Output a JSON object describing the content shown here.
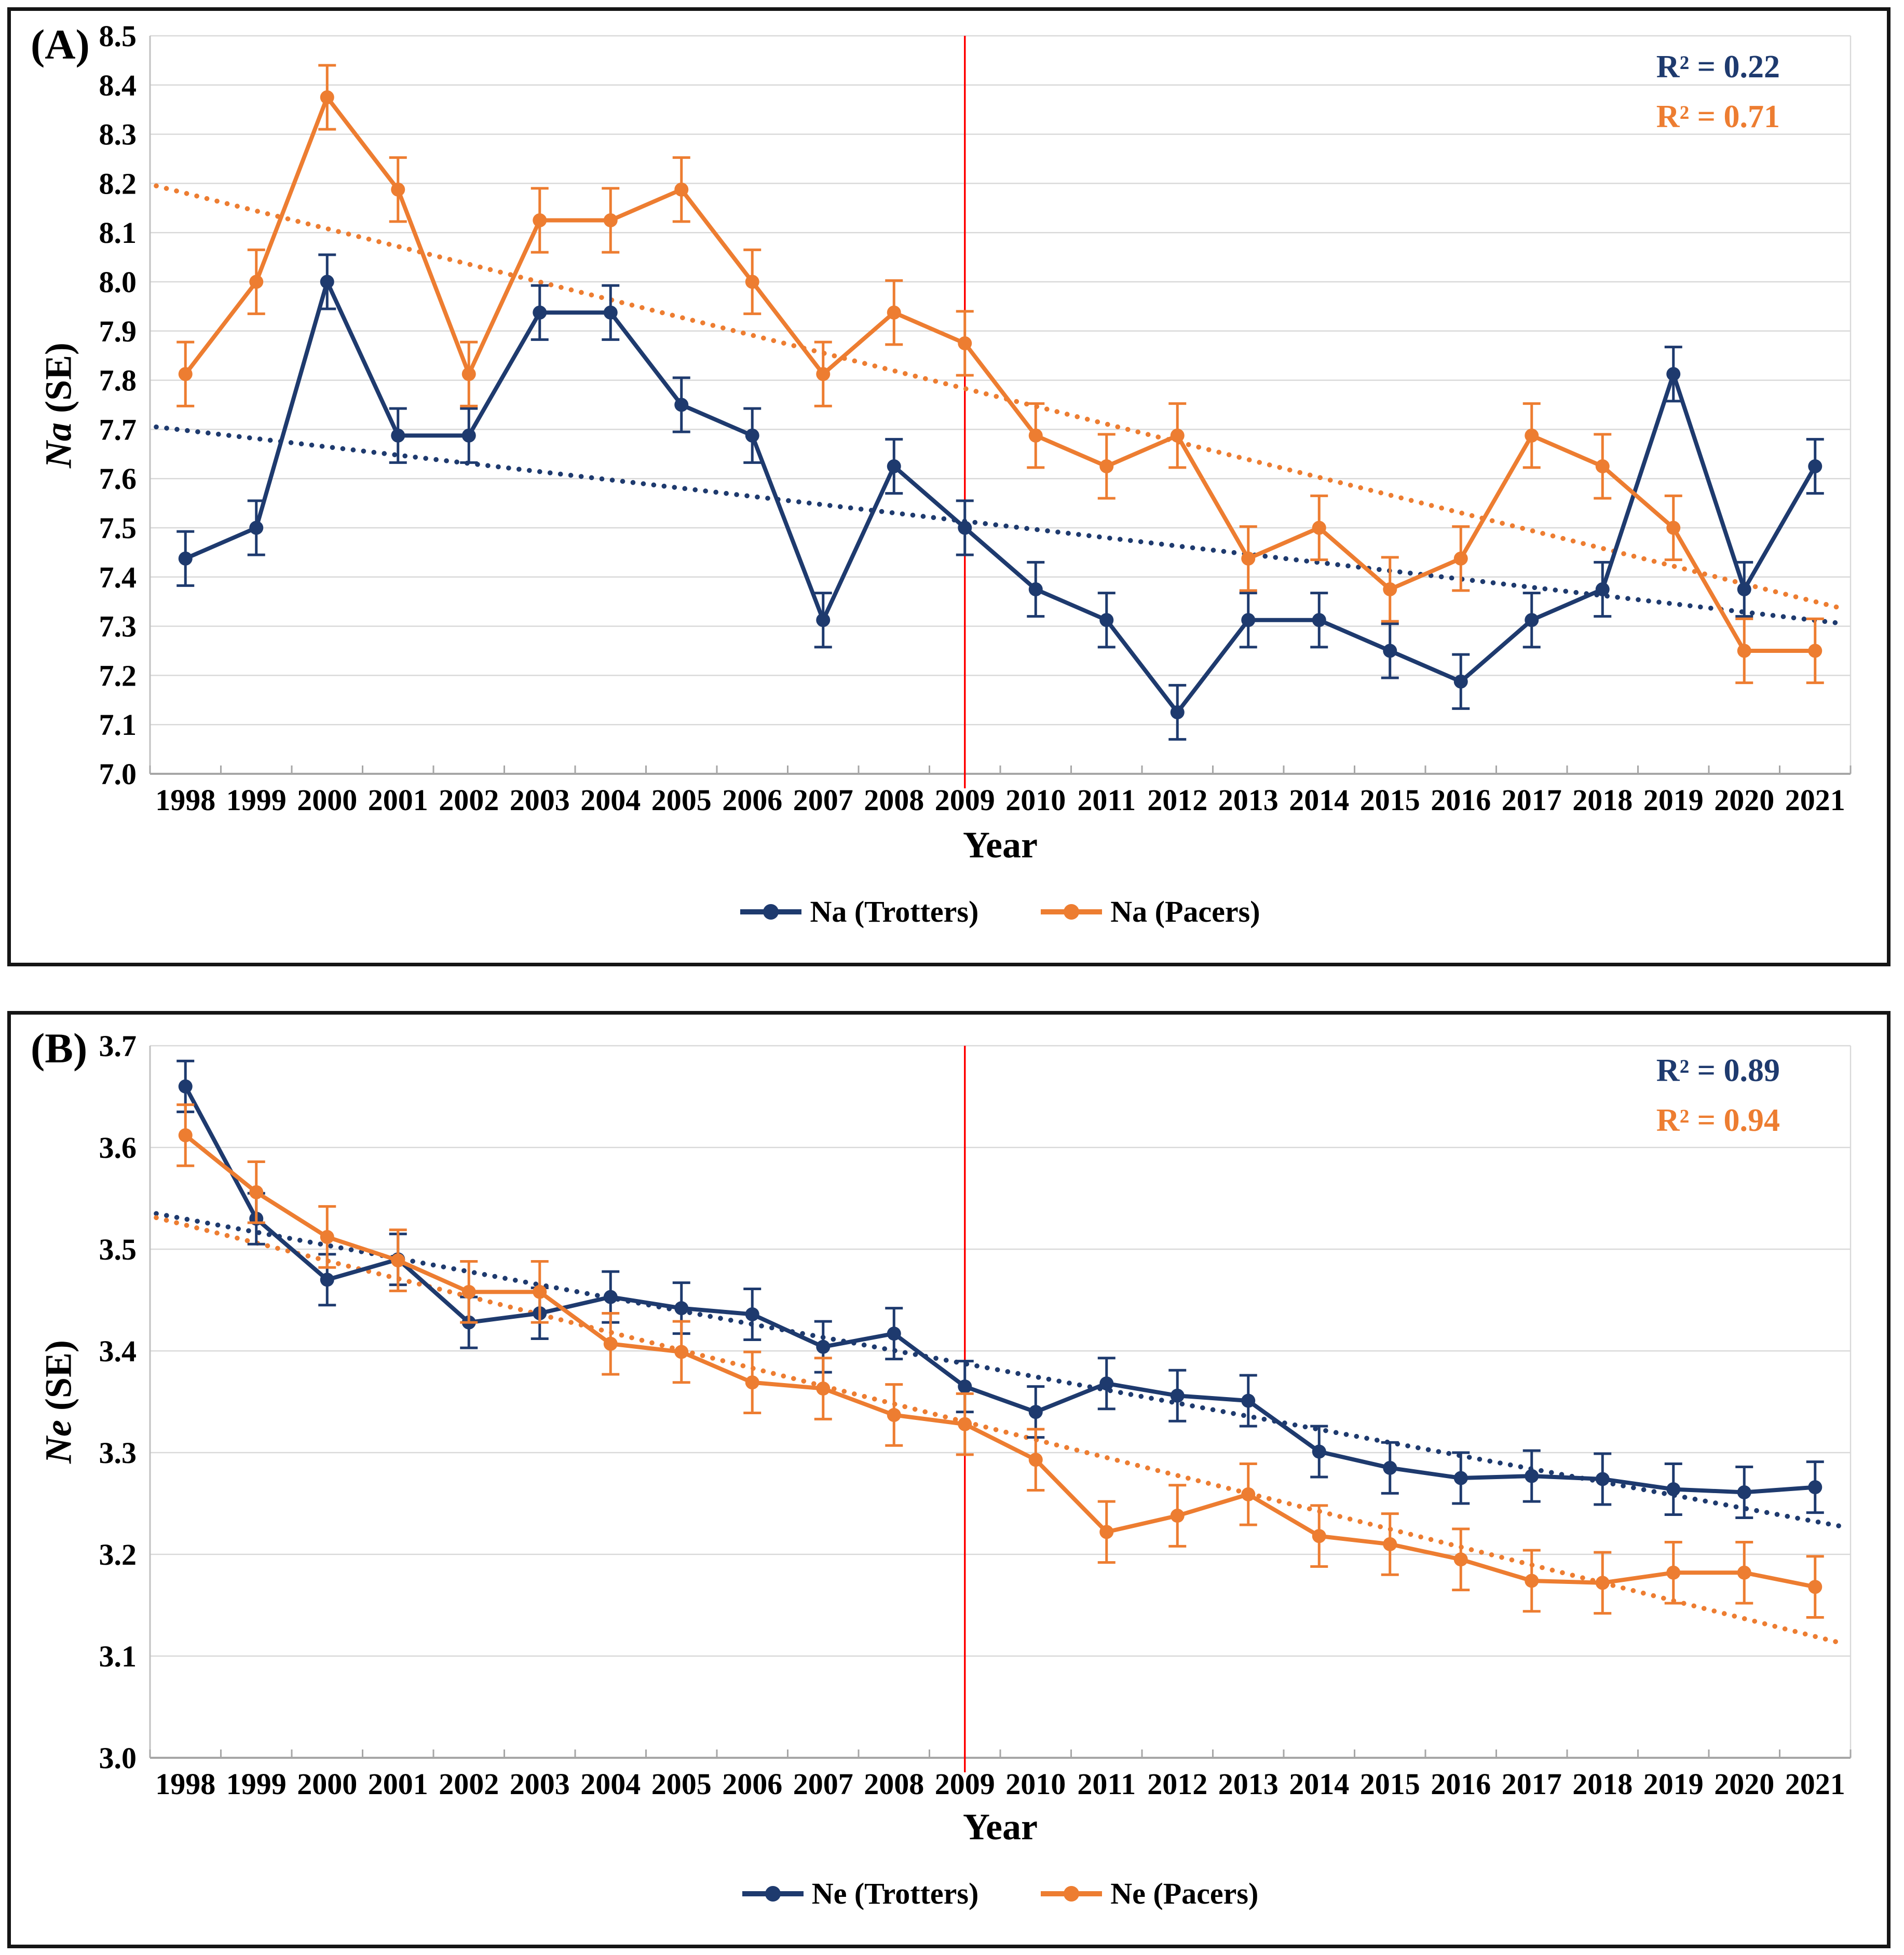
{
  "figure": {
    "background": "#ffffff",
    "border_color": "#151515",
    "grid_color": "#d9d9d9",
    "axis_color": "#a6a6a6",
    "reference_line_color": "#ff0000",
    "panels": [
      {
        "label": "(A)",
        "y_label_main": "Na",
        "y_label_rest": " (SE)",
        "x_axis_label": "Year",
        "r2": [
          {
            "text": "R² = 0.22",
            "series_index": 0
          },
          {
            "text": "R² = 0.71",
            "series_index": 1
          }
        ]
      },
      {
        "label": "(B)",
        "y_label_main": "Ne",
        "y_label_rest": " (SE)",
        "x_axis_label": "Year",
        "r2": [
          {
            "text": "R² = 0.89",
            "series_index": 0
          },
          {
            "text": "R² = 0.94",
            "series_index": 1
          }
        ]
      }
    ]
  },
  "chart_data": [
    {
      "type": "line",
      "title": "(A)",
      "xlabel": "Year",
      "ylabel": "Na (SE)",
      "x": [
        "1998",
        "1999",
        "2000",
        "2001",
        "2002",
        "2003",
        "2004",
        "2005",
        "2006",
        "2007",
        "2008",
        "2009",
        "2010",
        "2011",
        "2012",
        "2013",
        "2014",
        "2015",
        "2016",
        "2017",
        "2018",
        "2019",
        "2020",
        "2021"
      ],
      "ylim": [
        7.0,
        8.5
      ],
      "ytick_step": 0.1,
      "grid": true,
      "legend_position": "bottom",
      "reference_line_x": "2009",
      "series": [
        {
          "name": "Na (Trotters)",
          "color": "#1e3a6e",
          "r2": 0.22,
          "se": 0.055,
          "values": [
            7.4375,
            7.5,
            8.0,
            7.6875,
            7.6875,
            7.9375,
            7.9375,
            7.75,
            7.6875,
            7.3125,
            7.625,
            7.5,
            7.375,
            7.3125,
            7.125,
            7.3125,
            7.3125,
            7.25,
            7.1875,
            7.3125,
            7.375,
            7.8125,
            7.375,
            7.625
          ],
          "trendline": {
            "start": 7.705,
            "end": 7.305,
            "style": "dotted"
          }
        },
        {
          "name": "Na (Pacers)",
          "color": "#ed7d31",
          "r2": 0.71,
          "se": 0.065,
          "values": [
            7.8125,
            8.0,
            8.375,
            8.1875,
            7.8125,
            8.125,
            8.125,
            8.1875,
            8.0,
            7.8125,
            7.9375,
            7.875,
            7.6875,
            7.625,
            7.6875,
            7.4375,
            7.5,
            7.375,
            7.4375,
            7.6875,
            7.625,
            7.5,
            7.25,
            7.25
          ],
          "trendline": {
            "start": 8.195,
            "end": 7.335,
            "style": "dotted"
          }
        }
      ]
    },
    {
      "type": "line",
      "title": "(B)",
      "xlabel": "Year",
      "ylabel": "Ne (SE)",
      "x": [
        "1998",
        "1999",
        "2000",
        "2001",
        "2002",
        "2003",
        "2004",
        "2005",
        "2006",
        "2007",
        "2008",
        "2009",
        "2010",
        "2011",
        "2012",
        "2013",
        "2014",
        "2015",
        "2016",
        "2017",
        "2018",
        "2019",
        "2020",
        "2021"
      ],
      "ylim": [
        3.0,
        3.7
      ],
      "ytick_step": 0.1,
      "grid": true,
      "legend_position": "bottom",
      "reference_line_x": "2009",
      "series": [
        {
          "name": "Ne (Trotters)",
          "color": "#1e3a6e",
          "r2": 0.89,
          "se": 0.025,
          "values": [
            3.66,
            3.53,
            3.47,
            3.49,
            3.428,
            3.437,
            3.453,
            3.442,
            3.436,
            3.404,
            3.417,
            3.365,
            3.34,
            3.368,
            3.356,
            3.351,
            3.301,
            3.285,
            3.275,
            3.277,
            3.274,
            3.264,
            3.261,
            3.266
          ],
          "trendline": {
            "start": 3.535,
            "end": 3.227,
            "style": "dotted"
          }
        },
        {
          "name": "Ne (Pacers)",
          "color": "#ed7d31",
          "r2": 0.94,
          "se": 0.03,
          "values": [
            3.612,
            3.556,
            3.512,
            3.489,
            3.458,
            3.458,
            3.407,
            3.399,
            3.369,
            3.363,
            3.337,
            3.328,
            3.293,
            3.222,
            3.238,
            3.259,
            3.218,
            3.21,
            3.195,
            3.174,
            3.172,
            3.182,
            3.182,
            3.168
          ],
          "trendline": {
            "start": 3.531,
            "end": 3.112,
            "style": "dotted"
          }
        }
      ]
    }
  ]
}
